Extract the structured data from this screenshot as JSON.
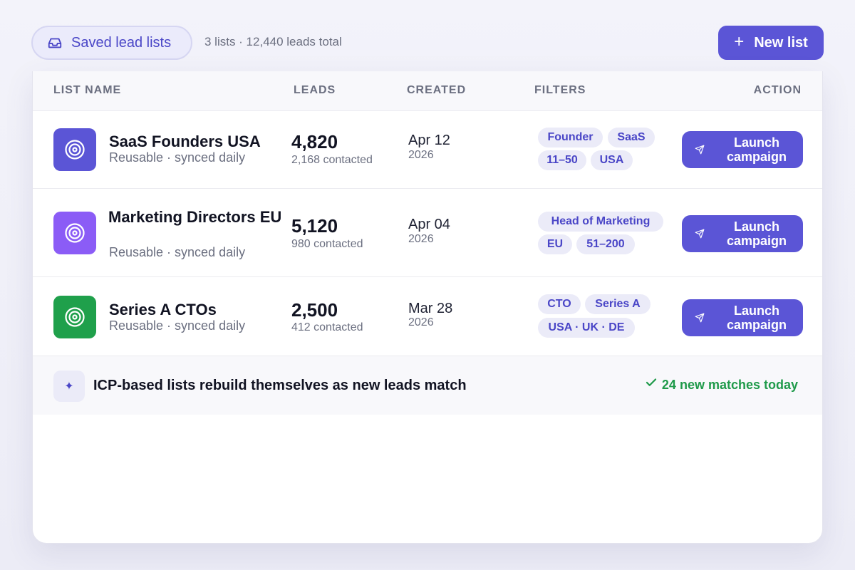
{
  "header": {
    "chip_label": "Saved lead lists",
    "summary": "3 lists · 12,440 leads total",
    "new_list_label": "New list"
  },
  "table": {
    "columns": [
      "LIST NAME",
      "LEADS",
      "CREATED",
      "FILTERS",
      "ACTION"
    ],
    "rows": [
      {
        "name": "SaaS Founders USA",
        "subtitle": "Reusable · synced daily",
        "leads": "4,820",
        "contacted": "2,168 contacted",
        "date": "Apr 12",
        "year": "2026",
        "tags": [
          "Founder",
          "SaaS",
          "11–50",
          "USA"
        ],
        "action": "Launch campaign",
        "icon_color": "#5b55d6"
      },
      {
        "name": "Marketing Directors EU",
        "subtitle": "Reusable · synced daily",
        "leads": "5,120",
        "contacted": "980 contacted",
        "date": "Apr 04",
        "year": "2026",
        "tags": [
          "Head of Marketing",
          "EU",
          "51–200"
        ],
        "action": "Launch campaign",
        "icon_color": "#8b5cf6"
      },
      {
        "name": "Series A CTOs",
        "subtitle": "Reusable · synced daily",
        "leads": "2,500",
        "contacted": "412 contacted",
        "date": "Mar 28",
        "year": "2026",
        "tags": [
          "CTO",
          "Series A",
          "USA · UK · DE"
        ],
        "action": "Launch campaign",
        "icon_color": "#1fa04b"
      }
    ]
  },
  "footer": {
    "text": "ICP-based lists rebuild themselves as new leads match",
    "matches": "24 new matches today"
  },
  "colors": {
    "accent": "#5b55d6",
    "success": "#1f9a4a"
  }
}
